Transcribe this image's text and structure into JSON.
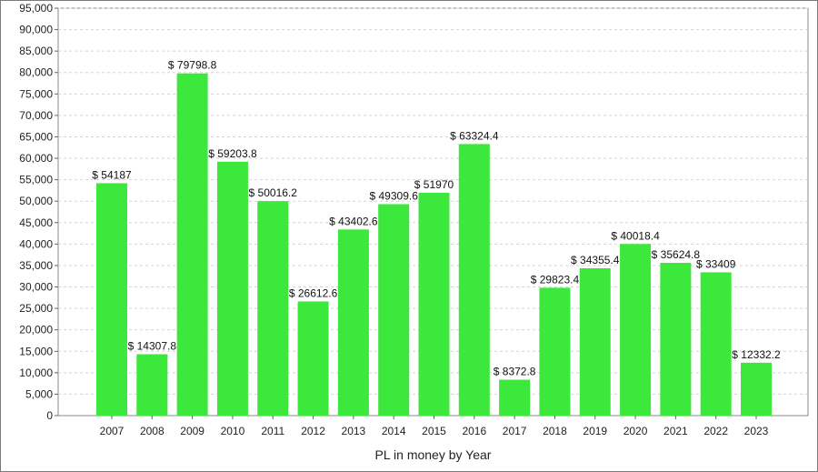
{
  "chart_data": {
    "type": "bar",
    "title": "",
    "xlabel": "PL in money by Year",
    "ylabel": "",
    "categories": [
      "2007",
      "2008",
      "2009",
      "2010",
      "2011",
      "2012",
      "2013",
      "2014",
      "2015",
      "2016",
      "2017",
      "2018",
      "2019",
      "2020",
      "2021",
      "2022",
      "2023"
    ],
    "values": [
      54187,
      14307.8,
      79798.8,
      59203.8,
      50016.2,
      26612.6,
      43402.6,
      49309.6,
      51970,
      63324.4,
      8372.8,
      29823.4,
      34355.4,
      40018.4,
      35624.8,
      33409,
      12332.2
    ],
    "data_labels": [
      "$ 54187",
      "$ 14307.8",
      "$ 79798.8",
      "$ 59203.8",
      "$ 50016.2",
      "$ 26612.6",
      "$ 43402.6",
      "$ 49309.6",
      "$ 51970",
      "$ 63324.4",
      "$ 8372.8",
      "$ 29823.4",
      "$ 34355.4",
      "$ 40018.4",
      "$ 35624.8",
      "$ 33409",
      "$ 12332.2"
    ],
    "ylim": [
      0,
      95000
    ],
    "y_ticks": [
      "0",
      "5,000",
      "10,000",
      "15,000",
      "20,000",
      "25,000",
      "30,000",
      "35,000",
      "40,000",
      "45,000",
      "50,000",
      "55,000",
      "60,000",
      "65,000",
      "70,000",
      "75,000",
      "80,000",
      "85,000",
      "90,000",
      "95,000"
    ],
    "bar_color": "#3de83d",
    "grid": "horizontal dashed",
    "legend": "none"
  }
}
